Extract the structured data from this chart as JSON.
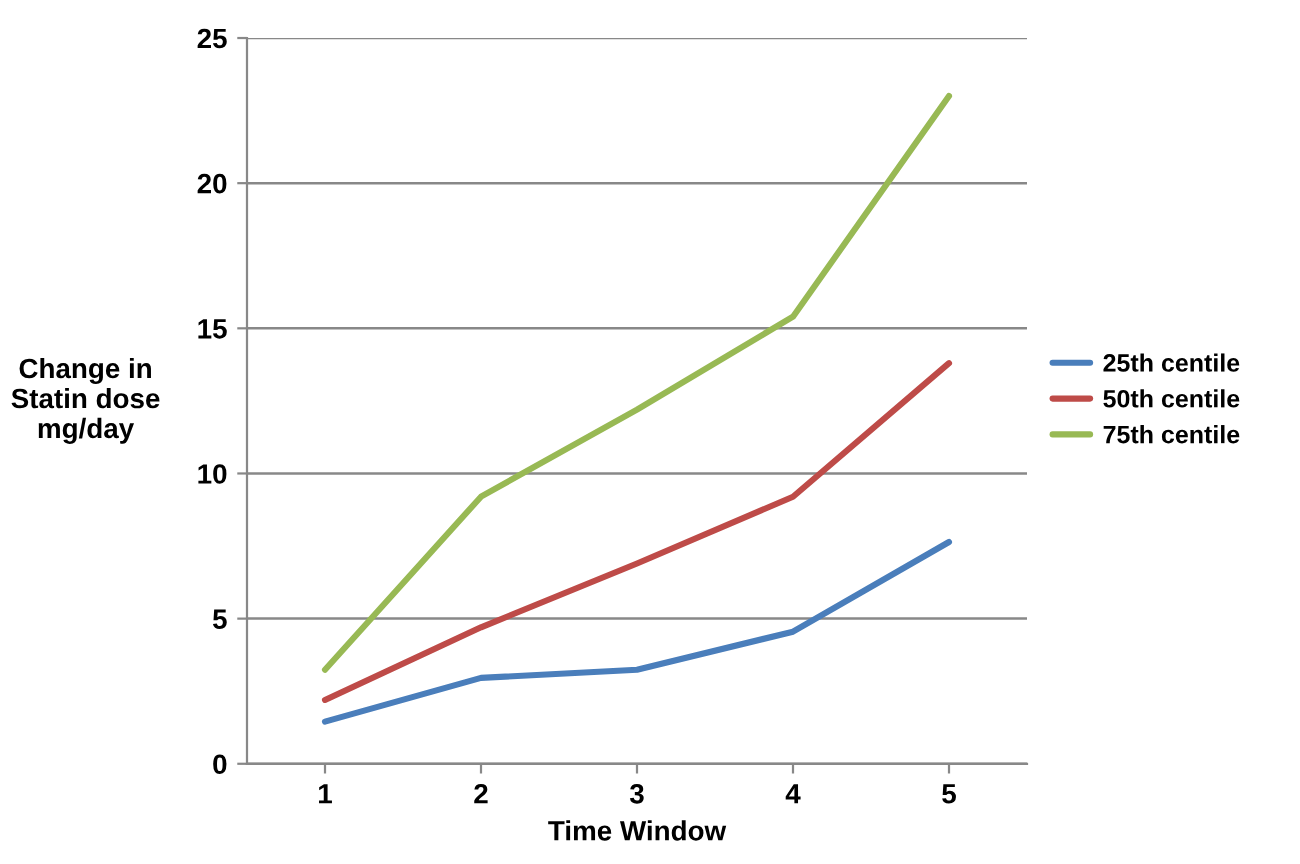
{
  "chart_data": {
    "type": "line",
    "xlabel": "Time Window",
    "ylabel": "Change in\nStatin dose\nmg/day",
    "x": [
      1,
      2,
      3,
      4,
      5
    ],
    "xlim": [
      0.5,
      5.5
    ],
    "xticks": [
      1,
      2,
      3,
      4,
      5
    ],
    "ylim": [
      0,
      25
    ],
    "yticks": [
      0,
      5,
      10,
      15,
      20,
      25
    ],
    "grid": "y",
    "legend": "right",
    "marker": "none",
    "line_style": "solid",
    "series": [
      {
        "name": "25th centile",
        "color": "#4a7ebb",
        "values": [
          1.45,
          2.96,
          3.24,
          4.55,
          7.64
        ]
      },
      {
        "name": "50th centile",
        "color": "#be4b48",
        "values": [
          2.2,
          4.7,
          6.9,
          9.2,
          13.8
        ]
      },
      {
        "name": "75th centile",
        "color": "#98b954",
        "values": [
          3.24,
          9.2,
          12.2,
          15.4,
          23.0
        ]
      }
    ]
  }
}
